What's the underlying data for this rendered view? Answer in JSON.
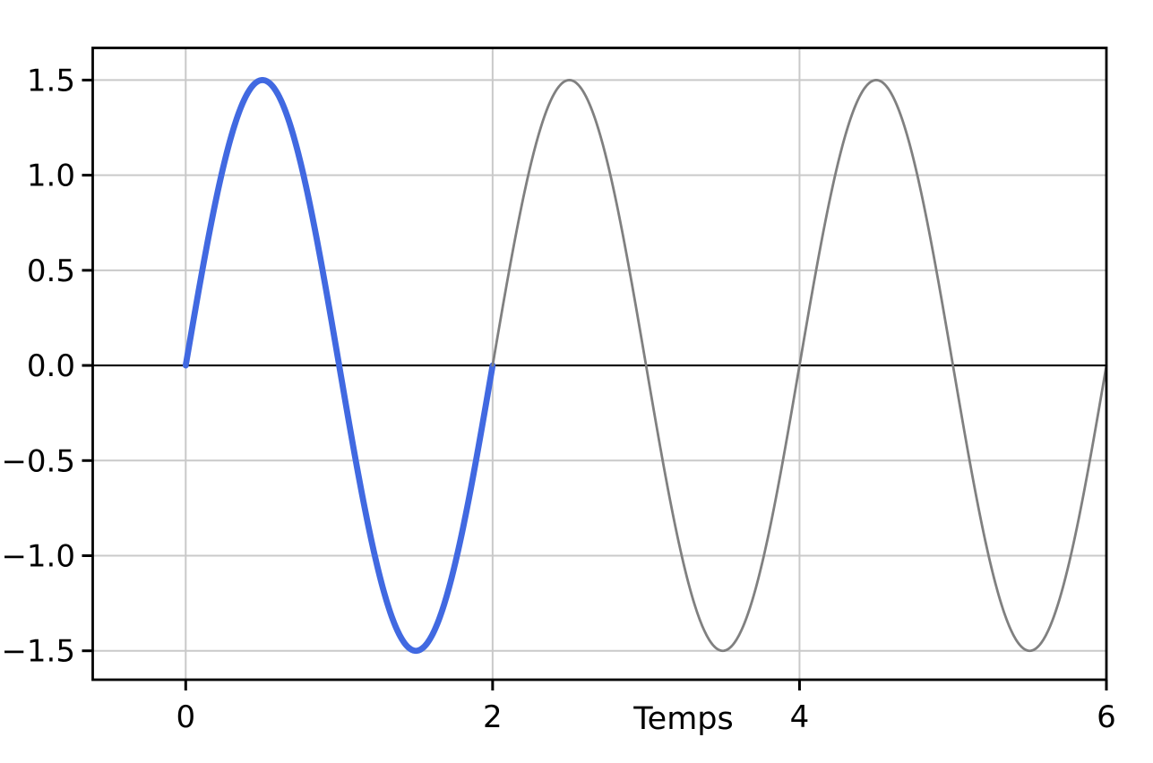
{
  "chart_data": {
    "type": "line",
    "title": "",
    "xlabel": "Temps",
    "ylabel": "",
    "xlim": [
      -0.606,
      6.0
    ],
    "ylim": [
      -1.652,
      1.669
    ],
    "grid": true,
    "legend": false,
    "x_ticks": [
      {
        "value": 0,
        "label": "0"
      },
      {
        "value": 2,
        "label": "2"
      },
      {
        "value": 4,
        "label": "4"
      },
      {
        "value": 6,
        "label": "6"
      }
    ],
    "y_ticks": [
      {
        "value": 1.5,
        "label": "1.5"
      },
      {
        "value": 1.0,
        "label": "1.0"
      },
      {
        "value": 0.5,
        "label": "0.5"
      },
      {
        "value": 0.0,
        "label": "0.0"
      },
      {
        "value": -0.5,
        "label": "−0.5"
      },
      {
        "value": -1.0,
        "label": "−1.0"
      },
      {
        "value": -1.5,
        "label": "−1.5"
      }
    ],
    "zero_line": {
      "value": 0,
      "color": "#000000",
      "linewidth": 2.2
    },
    "series": [
      {
        "name": "sine-first-period-highlighted",
        "function": "y = 1.5 * sin(pi * t)",
        "amplitude": 1.5,
        "period": 2,
        "phase": 0,
        "t_start": 0,
        "t_end": 2,
        "color": "#4169E1",
        "linewidth": 6.8
      },
      {
        "name": "sine-continuation",
        "function": "y = 1.5 * sin(pi * t)",
        "amplitude": 1.5,
        "period": 2,
        "phase": 0,
        "t_start": 2,
        "t_end": 6,
        "color": "#808080",
        "linewidth": 2.8
      }
    ],
    "key_points": {
      "peaks_t": [
        0.5,
        2.5,
        4.5
      ],
      "troughs_t": [
        1.5,
        3.5,
        5.5
      ],
      "zero_crossings_t": [
        0,
        1,
        2,
        3,
        4,
        5,
        6
      ],
      "peak_value": 1.5,
      "trough_value": -1.5
    }
  },
  "colors": {
    "background": "#ffffff",
    "spine": "#000000",
    "grid": "#c9c9c9",
    "tick": "#000000",
    "tick_label": "#000000"
  }
}
